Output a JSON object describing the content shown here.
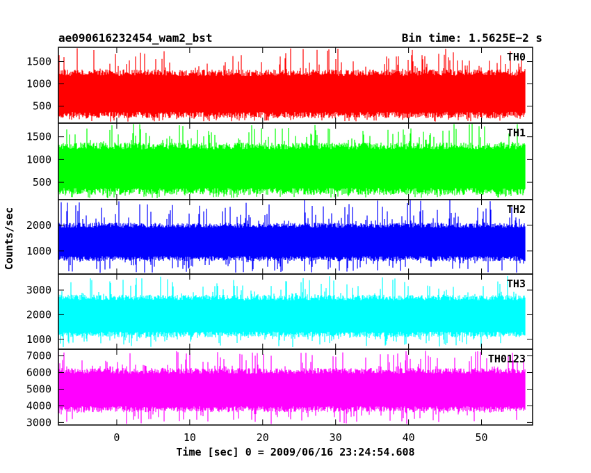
{
  "chart_data": {
    "type": "line",
    "title_left": "ae090616232454_wam2_bst",
    "title_right": "Bin time: 1.5625E−2 s",
    "xlabel": "Time [sec] 0 = 2009/06/16 23:24:54.608",
    "ylabel": "Counts/sec",
    "xlim": [
      -8,
      57
    ],
    "x_ticks": [
      "0",
      "10",
      "20",
      "30",
      "40",
      "50"
    ],
    "x_tick_values": [
      0,
      10,
      20,
      30,
      40,
      50
    ],
    "x_range_data": [
      -8,
      56
    ],
    "grid": false,
    "panels": [
      {
        "name": "TH0",
        "color": "#ff0000",
        "ylim": [
          120,
          1820
        ],
        "y_ticks": [
          "500",
          "1000",
          "1500"
        ],
        "y_tick_values": [
          500,
          1000,
          1500
        ],
        "envelope_min": 150,
        "envelope_max": 1800,
        "band_low": 300,
        "band_high": 1250
      },
      {
        "name": "TH1",
        "color": "#00ff00",
        "ylim": [
          120,
          1800
        ],
        "y_ticks": [
          "500",
          "1000",
          "1500"
        ],
        "y_tick_values": [
          500,
          1000,
          1500
        ],
        "envelope_min": 150,
        "envelope_max": 1800,
        "band_low": 300,
        "band_high": 1300
      },
      {
        "name": "TH2",
        "color": "#0000ff",
        "ylim": [
          100,
          3000
        ],
        "y_ticks": [
          "1000",
          "2000"
        ],
        "y_tick_values": [
          1000,
          2000
        ],
        "envelope_min": 150,
        "envelope_max": 3000,
        "band_low": 700,
        "band_high": 2000
      },
      {
        "name": "TH3",
        "color": "#00ffff",
        "ylim": [
          600,
          3650
        ],
        "y_ticks": [
          "1000",
          "2000",
          "3000"
        ],
        "y_tick_values": [
          1000,
          2000,
          3000
        ],
        "envelope_min": 650,
        "envelope_max": 3600,
        "band_low": 1200,
        "band_high": 2700
      },
      {
        "name": "TH0123",
        "color": "#ff00ff",
        "ylim": [
          2850,
          7400
        ],
        "y_ticks": [
          "3000",
          "4000",
          "5000",
          "6000",
          "7000"
        ],
        "y_tick_values": [
          3000,
          4000,
          5000,
          6000,
          7000
        ],
        "envelope_min": 2900,
        "envelope_max": 7300,
        "band_low": 3800,
        "band_high": 6100
      }
    ]
  }
}
